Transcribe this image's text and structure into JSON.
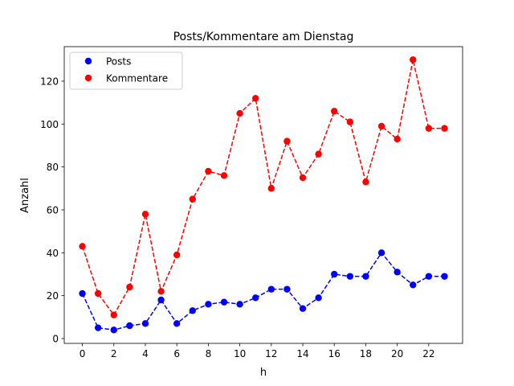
{
  "chart_data": {
    "type": "line",
    "title": "Posts/Kommentare am Dienstag",
    "xlabel": "h",
    "ylabel": "Anzahl",
    "x": [
      0,
      1,
      2,
      3,
      4,
      5,
      6,
      7,
      8,
      9,
      10,
      11,
      12,
      13,
      14,
      15,
      16,
      17,
      18,
      19,
      20,
      21,
      22,
      23
    ],
    "xlim": [
      -1.15,
      24.15
    ],
    "ylim": [
      -2.25,
      136.1
    ],
    "xticks": [
      0,
      2,
      4,
      6,
      8,
      10,
      12,
      14,
      16,
      18,
      20,
      22
    ],
    "yticks": [
      0,
      20,
      40,
      60,
      80,
      100,
      120
    ],
    "grid": false,
    "legend_position": "top-left",
    "series": [
      {
        "name": "Posts",
        "color": "#0000ff",
        "values": [
          21,
          5,
          4,
          6,
          7,
          18,
          7,
          13,
          16,
          17,
          16,
          19,
          23,
          23,
          14,
          19,
          30,
          29,
          29,
          40,
          31,
          25,
          29,
          29
        ]
      },
      {
        "name": "Kommentare",
        "color": "#ff0000",
        "values": [
          43,
          21,
          11,
          24,
          58,
          22,
          39,
          65,
          78,
          76,
          105,
          112,
          70,
          92,
          75,
          86,
          106,
          101,
          73,
          99,
          93,
          130,
          98,
          98
        ]
      }
    ]
  }
}
